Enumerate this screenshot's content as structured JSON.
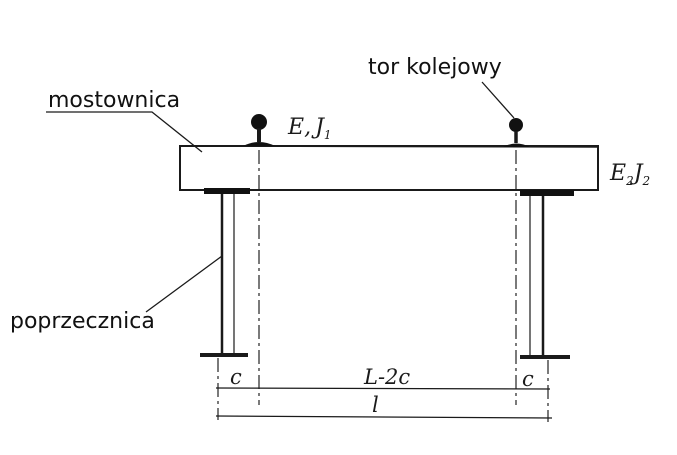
{
  "labels": {
    "sleeper": "mostownica",
    "rail": "tor kolejowy",
    "crossbeam": "poprzecznica"
  },
  "properties": {
    "rail_e": "E",
    "rail_sep": ",",
    "rail_j": "J",
    "rail_sub": "1",
    "sleeper_e": "E",
    "sleeper_e_sub": "2",
    "sleeper_j": "J",
    "sleeper_j_sub": "2"
  },
  "dimensions": {
    "c_left": "c",
    "middle": "L-2c",
    "c_right": "c",
    "total": "l"
  }
}
